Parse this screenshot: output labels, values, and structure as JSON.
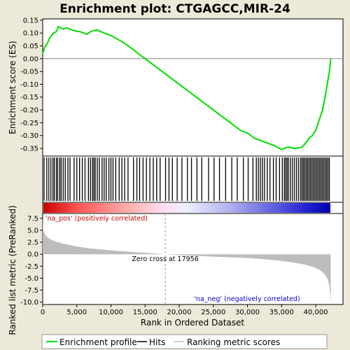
{
  "title": "Enrichment plot: CTGAGCC,MIR-24",
  "chart_data": [
    {
      "type": "line",
      "panel": "enrichment-profile",
      "ylabel": "Enrichment score (ES)",
      "ylim": [
        -0.38,
        0.155
      ],
      "xlim": [
        0,
        42500
      ],
      "yticks": [
        0.15,
        0.1,
        0.05,
        0.0,
        -0.05,
        -0.1,
        -0.15,
        -0.2,
        -0.25,
        -0.3,
        -0.35
      ],
      "ytick_labels": [
        "0.15",
        "0.10",
        "0.05",
        "0.00",
        "-0.05",
        "-0.10",
        "-0.15",
        "-0.20",
        "-0.25",
        "-0.30",
        "-0.35"
      ],
      "grid": false,
      "color": "#00dd00",
      "series": [
        {
          "x": [
            0,
            300,
            700,
            1000,
            1300,
            1600,
            2000,
            2300,
            2600,
            3000,
            3500,
            4000,
            4500,
            5000,
            5500,
            6000,
            6500,
            7000,
            7500,
            8000,
            8500,
            9000,
            10000,
            11000,
            12000,
            13000,
            14000,
            15000,
            16000,
            17000,
            18000,
            19000,
            20000,
            21000,
            22000,
            23000,
            24000,
            25000,
            26000,
            27000,
            28000,
            29000,
            30000,
            31000,
            32000,
            33000,
            34000,
            35000,
            35500,
            36000,
            37000,
            38000,
            38500,
            39000,
            39500,
            40000,
            40500,
            41000,
            41500,
            42000,
            42200
          ],
          "y": [
            0.02,
            0.045,
            0.06,
            0.08,
            0.09,
            0.1,
            0.105,
            0.125,
            0.12,
            0.115,
            0.12,
            0.115,
            0.11,
            0.107,
            0.105,
            0.1,
            0.095,
            0.105,
            0.11,
            0.112,
            0.105,
            0.1,
            0.09,
            0.075,
            0.06,
            0.04,
            0.02,
            0.0,
            -0.02,
            -0.04,
            -0.06,
            -0.08,
            -0.1,
            -0.12,
            -0.14,
            -0.16,
            -0.18,
            -0.2,
            -0.22,
            -0.24,
            -0.26,
            -0.28,
            -0.29,
            -0.31,
            -0.32,
            -0.33,
            -0.34,
            -0.355,
            -0.348,
            -0.345,
            -0.35,
            -0.345,
            -0.33,
            -0.31,
            -0.3,
            -0.28,
            -0.24,
            -0.2,
            -0.13,
            -0.05,
            0.0
          ]
        }
      ]
    },
    {
      "type": "heatmap",
      "panel": "hits",
      "legend": [
        "Hits"
      ],
      "hit_positions": [
        200,
        600,
        900,
        1200,
        1500,
        1700,
        2000,
        2200,
        2500,
        2700,
        3000,
        3300,
        3700,
        4000,
        4600,
        5000,
        5400,
        5800,
        6200,
        6700,
        7000,
        7300,
        7500,
        7700,
        8000,
        8300,
        8700,
        9000,
        9300,
        9700,
        10000,
        10300,
        10700,
        11200,
        11600,
        12000,
        12500,
        13300,
        13800,
        14200,
        14700,
        15200,
        15700,
        16200,
        16700,
        17200,
        18000,
        18500,
        19000,
        19700,
        20400,
        21200,
        21800,
        22600,
        23300,
        24300,
        25100,
        25900,
        26800,
        27700,
        28500,
        29400,
        30100,
        30800,
        31300,
        31600,
        31900,
        32200,
        32500,
        32900,
        33300,
        33800,
        34200,
        34700,
        35100,
        35400,
        35600,
        35800,
        36000,
        36300,
        36600,
        36900,
        37200,
        37500,
        37800,
        38000,
        38200,
        38400,
        38600,
        38800,
        39000,
        39200,
        39400,
        39600,
        39800,
        40000,
        40200,
        40400,
        40600,
        40800,
        41000,
        41200,
        41400,
        41600,
        41800,
        42000
      ]
    },
    {
      "type": "area",
      "panel": "ranked-list-metric",
      "ylabel": "Ranked list metric (PreRanked)",
      "xlabel": "Rank in Ordered Dataset",
      "ylim": [
        -10.5,
        8.5
      ],
      "xlim": [
        0,
        42500
      ],
      "yticks": [
        7.5,
        5.0,
        2.5,
        0.0,
        -2.5,
        -5.0,
        -7.5,
        -10.0
      ],
      "ytick_labels": [
        "7.5",
        "5.0",
        "2.5",
        "0.0",
        "-2.5",
        "-5.0",
        "-7.5",
        "-10.0"
      ],
      "xticks": [
        0,
        5000,
        10000,
        15000,
        20000,
        25000,
        30000,
        35000,
        40000
      ],
      "xtick_labels": [
        "0",
        "5,000",
        "10,000",
        "15,000",
        "20,000",
        "25,000",
        "30,000",
        "35,000",
        "40,000"
      ],
      "zero_cross": 17956,
      "series": [
        {
          "x": [
            0,
            50,
            200,
            500,
            1000,
            2000,
            3000,
            5000,
            7000,
            10000,
            13000,
            15000,
            17956,
            20000,
            25000,
            30000,
            33000,
            35000,
            37000,
            38500,
            39500,
            40500,
            41200,
            41700,
            42000,
            42200
          ],
          "y": [
            8.0,
            5.2,
            4.5,
            3.8,
            3.2,
            2.6,
            2.2,
            1.6,
            1.2,
            0.8,
            0.5,
            0.3,
            0.0,
            -0.2,
            -0.5,
            -0.8,
            -1.1,
            -1.4,
            -1.8,
            -2.2,
            -2.6,
            -3.2,
            -4.0,
            -5.0,
            -6.5,
            -10.0
          ]
        }
      ]
    }
  ],
  "annotations": {
    "pos_label": "'na_pos' (positively correlated)",
    "neg_label": "'na_neg' (negatively correlated)",
    "zero_cross_label": "Zero cross at 17956"
  },
  "legend": {
    "items": [
      {
        "label": "Enrichment profile",
        "color": "#00dd00"
      },
      {
        "label": "Hits",
        "color": "#000000"
      },
      {
        "label": "Ranking metric scores",
        "color": "#c0c0c0"
      }
    ]
  },
  "colors": {
    "profile": "#00dd00",
    "metric_fill": "#bdbdbd",
    "pos_text": "#cc0000",
    "neg_text": "#0000cc",
    "heat_pos": "#ff0000",
    "heat_neg": "#0000ff"
  }
}
